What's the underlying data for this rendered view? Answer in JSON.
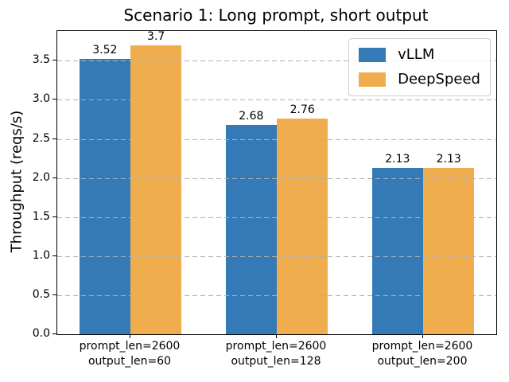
{
  "figure": {
    "title": "Scenario 1: Long prompt, short output"
  },
  "chart_data": {
    "type": "bar",
    "title": "Scenario 1: Long prompt, short output",
    "xlabel": "",
    "ylabel": "Throughput (reqs/s)",
    "categories": [
      "prompt_len=2600\noutput_len=60",
      "prompt_len=2600\noutput_len=128",
      "prompt_len=2600\noutput_len=200"
    ],
    "series": [
      {
        "name": "vLLM",
        "color": "#337ab7",
        "values": [
          3.52,
          2.68,
          2.13
        ],
        "labels": [
          "3.52",
          "2.68",
          "2.13"
        ]
      },
      {
        "name": "DeepSpeed",
        "color": "#f0ad4e",
        "values": [
          3.7,
          2.76,
          2.13
        ],
        "labels": [
          "3.7",
          "2.76",
          "2.13"
        ]
      }
    ],
    "yticks": [
      0.0,
      0.5,
      1.0,
      1.5,
      2.0,
      2.5,
      3.0,
      3.5
    ],
    "ytick_labels": [
      "0.0",
      "0.5",
      "1.0",
      "1.5",
      "2.0",
      "2.5",
      "3.0",
      "3.5"
    ],
    "ylim": [
      0,
      3.88
    ],
    "grid": {
      "axis": "y",
      "linestyle": "dashed",
      "color": "#b0b0b0"
    },
    "legend": {
      "position": "upper right"
    },
    "bar_width_fraction": 0.35,
    "colors": {
      "vllm_blue": "#337ab7",
      "deepspeed_orange": "#f0ad4e",
      "grid_gray": "#b0b0b0",
      "spine_black": "#000000"
    }
  }
}
